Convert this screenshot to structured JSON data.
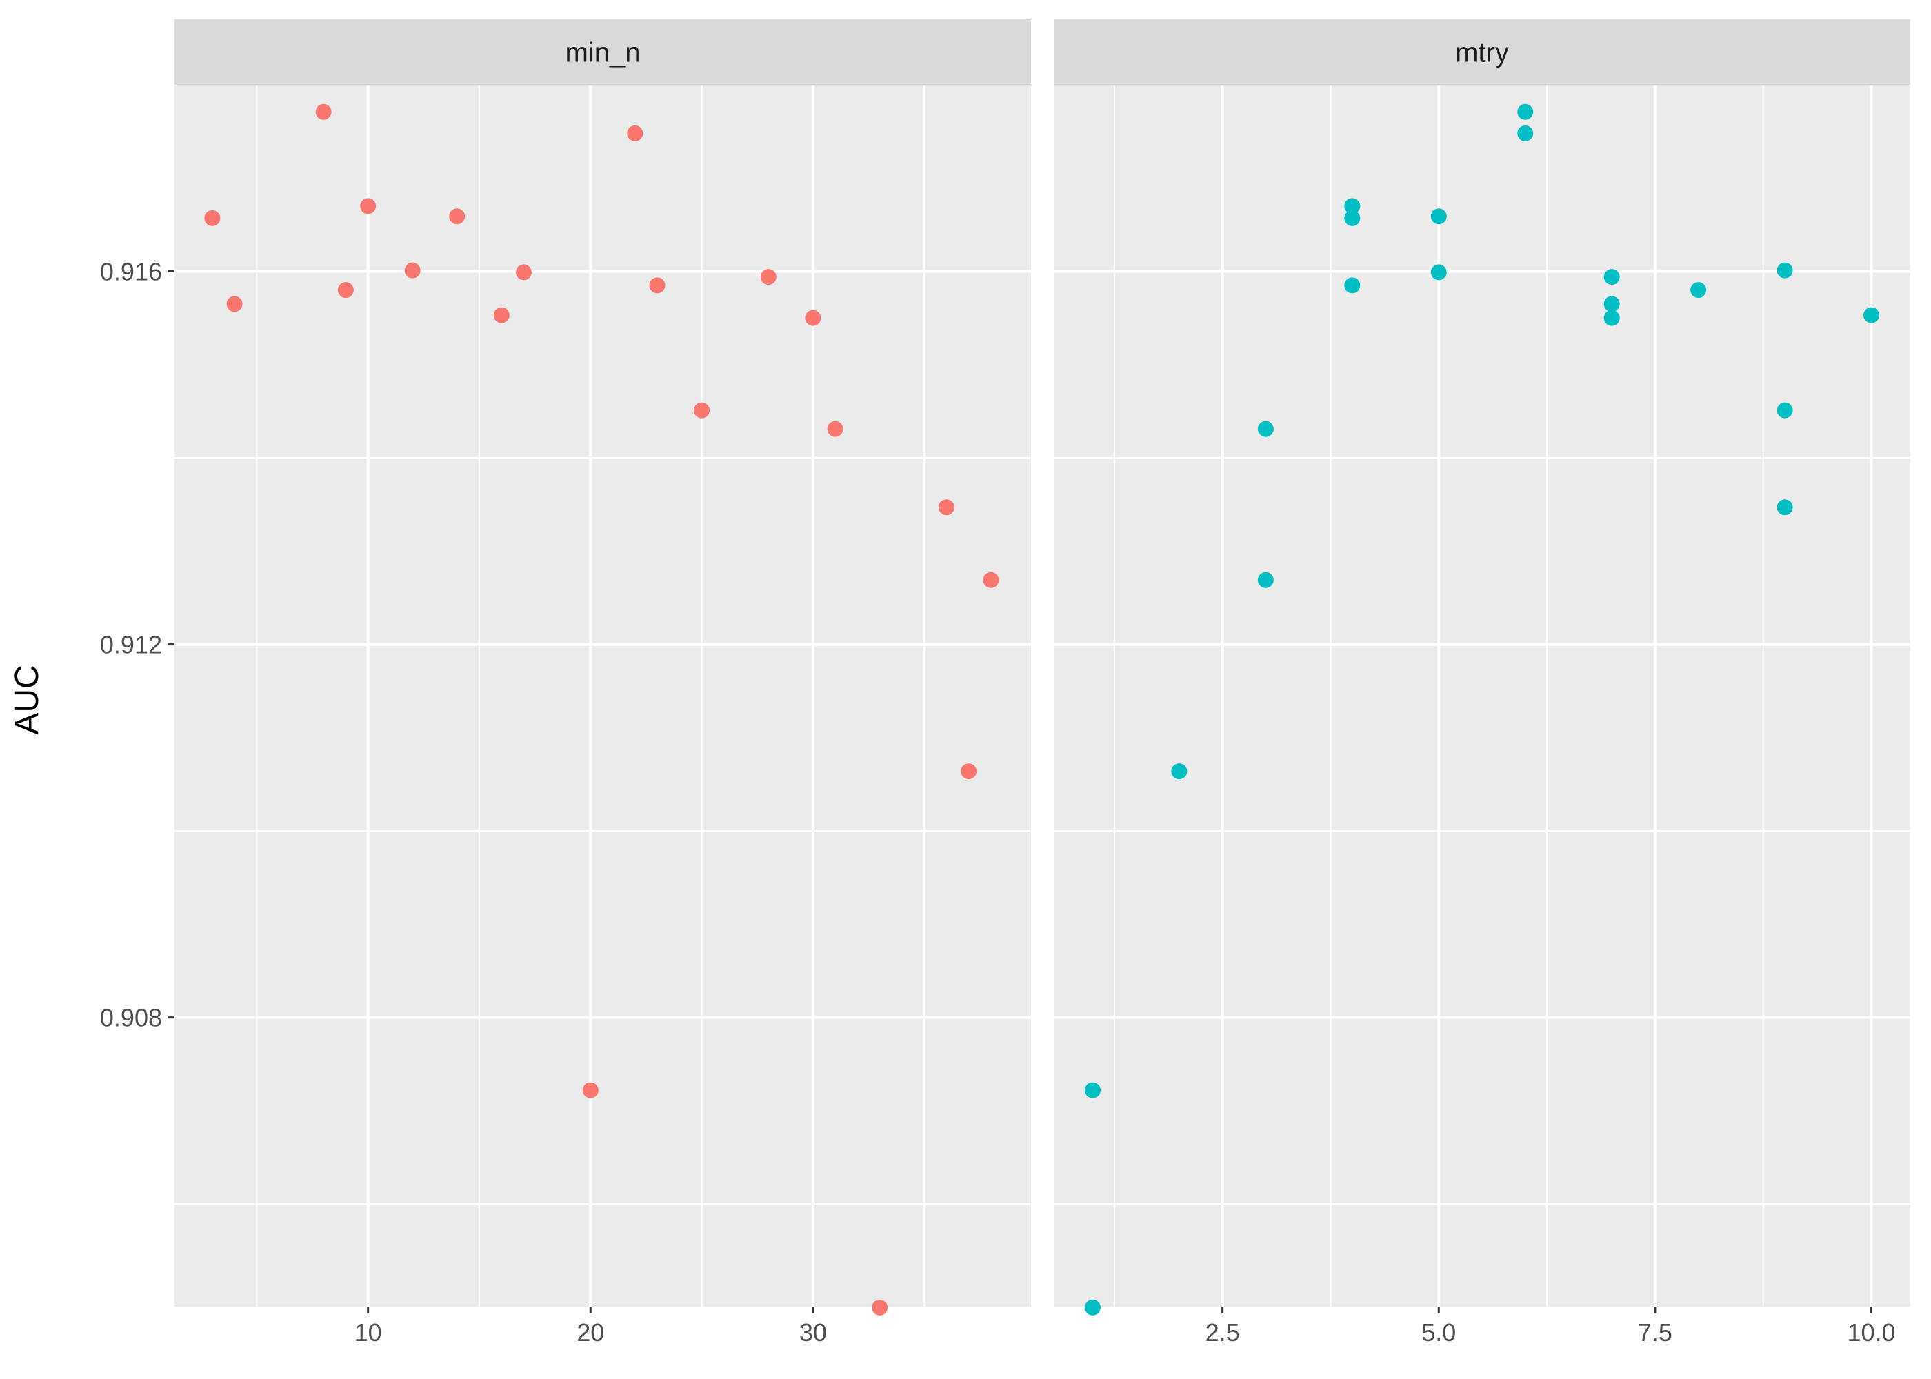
{
  "chart_data": {
    "type": "scatter",
    "ylabel": "AUC",
    "xlabel": "",
    "yticks": [
      "0.908",
      "0.912",
      "0.916"
    ],
    "ylim": [
      0.9049,
      0.918
    ],
    "grid": true,
    "legend": "none",
    "panels": [
      {
        "strip": "min_n",
        "color": "#F8766D",
        "xlim": [
          1.3,
          39.8
        ],
        "xticks": [
          "10",
          "20",
          "30"
        ],
        "points": [
          {
            "x": 3,
            "y": 0.91657
          },
          {
            "x": 4,
            "y": 0.91565
          },
          {
            "x": 8,
            "y": 0.91771
          },
          {
            "x": 9,
            "y": 0.9158
          },
          {
            "x": 10,
            "y": 0.9167
          },
          {
            "x": 12,
            "y": 0.91601
          },
          {
            "x": 14,
            "y": 0.91659
          },
          {
            "x": 16,
            "y": 0.91553
          },
          {
            "x": 17,
            "y": 0.91599
          },
          {
            "x": 20,
            "y": 0.90722
          },
          {
            "x": 22,
            "y": 0.91748
          },
          {
            "x": 23,
            "y": 0.91585
          },
          {
            "x": 25,
            "y": 0.91451
          },
          {
            "x": 28,
            "y": 0.91594
          },
          {
            "x": 30,
            "y": 0.9155
          },
          {
            "x": 31,
            "y": 0.91431
          },
          {
            "x": 33,
            "y": 0.90489
          },
          {
            "x": 36,
            "y": 0.91347
          },
          {
            "x": 37,
            "y": 0.91064
          },
          {
            "x": 38,
            "y": 0.91269
          }
        ]
      },
      {
        "strip": "mtry",
        "color": "#00BFC4",
        "xlim": [
          0.55,
          10.45
        ],
        "xticks": [
          "2.5",
          "5.0",
          "7.5",
          "10.0"
        ],
        "points": [
          {
            "x": 1,
            "y": 0.90722
          },
          {
            "x": 1,
            "y": 0.90489
          },
          {
            "x": 2,
            "y": 0.91064
          },
          {
            "x": 3,
            "y": 0.91431
          },
          {
            "x": 3,
            "y": 0.91269
          },
          {
            "x": 4,
            "y": 0.9167
          },
          {
            "x": 4,
            "y": 0.91657
          },
          {
            "x": 4,
            "y": 0.91585
          },
          {
            "x": 5,
            "y": 0.91659
          },
          {
            "x": 5,
            "y": 0.91599
          },
          {
            "x": 6,
            "y": 0.91771
          },
          {
            "x": 6,
            "y": 0.91748
          },
          {
            "x": 7,
            "y": 0.91594
          },
          {
            "x": 7,
            "y": 0.91565
          },
          {
            "x": 7,
            "y": 0.9155
          },
          {
            "x": 8,
            "y": 0.9158
          },
          {
            "x": 9,
            "y": 0.91601
          },
          {
            "x": 9,
            "y": 0.91451
          },
          {
            "x": 9,
            "y": 0.91347
          },
          {
            "x": 10,
            "y": 0.91553
          }
        ]
      }
    ]
  }
}
